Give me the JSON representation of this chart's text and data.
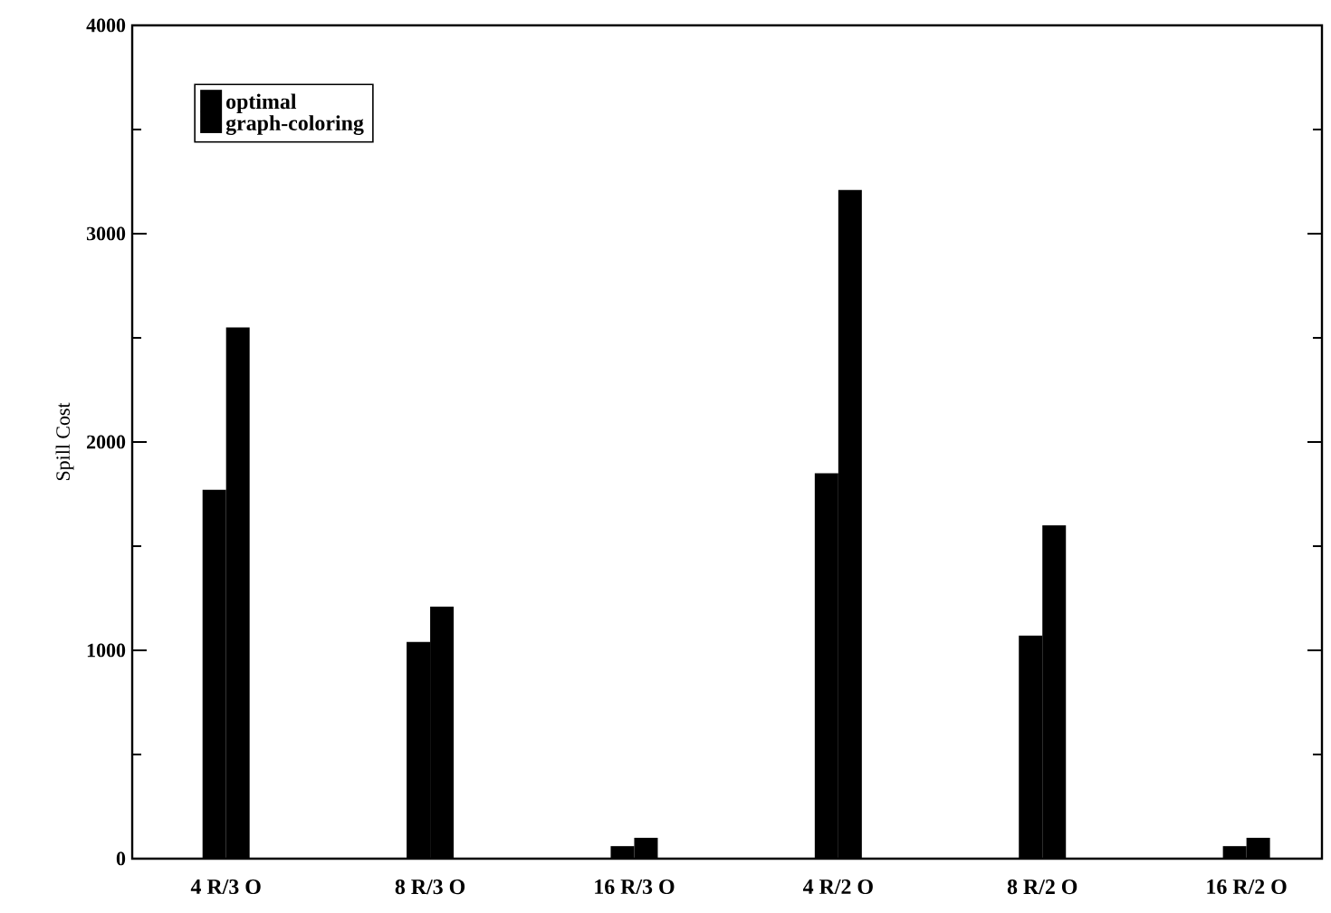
{
  "chart_data": {
    "type": "bar",
    "ylabel": "Spill Cost",
    "categories": [
      "4 R/3 O",
      "8 R/3 O",
      "16 R/3 O",
      "4 R/2 O",
      "8 R/2 O",
      "16 R/2 O"
    ],
    "series": [
      {
        "name": "optimal",
        "color": "#000000",
        "values": [
          1770,
          1040,
          60,
          1850,
          1070,
          60
        ]
      },
      {
        "name": "graph-coloring",
        "color": "#000000",
        "values": [
          2550,
          1210,
          100,
          3210,
          1600,
          100
        ]
      }
    ],
    "ylim": [
      0,
      4000
    ],
    "yticks": [
      0,
      1000,
      2000,
      3000,
      4000
    ],
    "legend": "top left",
    "grid": false
  }
}
